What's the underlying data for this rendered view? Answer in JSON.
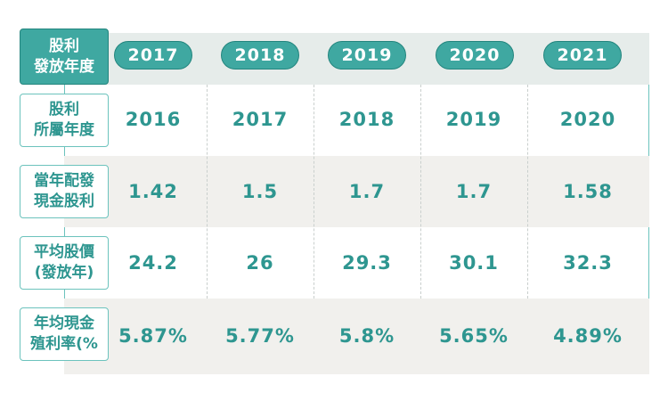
{
  "table": {
    "header_label": "股利\n發放年度",
    "years": [
      "2017",
      "2018",
      "2019",
      "2020",
      "2021"
    ],
    "rows": [
      {
        "label": "股利\n所屬年度",
        "values": [
          "2016",
          "2017",
          "2018",
          "2019",
          "2020"
        ]
      },
      {
        "label": "當年配發\n現金股利",
        "values": [
          "1.42",
          "1.5",
          "1.7",
          "1.7",
          "1.58"
        ]
      },
      {
        "label": "平均股價\n(發放年)",
        "values": [
          "24.2",
          "26",
          "29.3",
          "30.1",
          "32.3"
        ]
      },
      {
        "label": "年均現金\n殖利率(%",
        "values": [
          "5.87%",
          "5.77%",
          "5.8%",
          "5.65%",
          "4.89%"
        ]
      }
    ]
  },
  "colors": {
    "accent": "#3fa8a1",
    "accent_dark": "#23857e",
    "text": "#2e9690",
    "row_gray": "#f1f0ed",
    "header_band": "#e6ecea"
  }
}
